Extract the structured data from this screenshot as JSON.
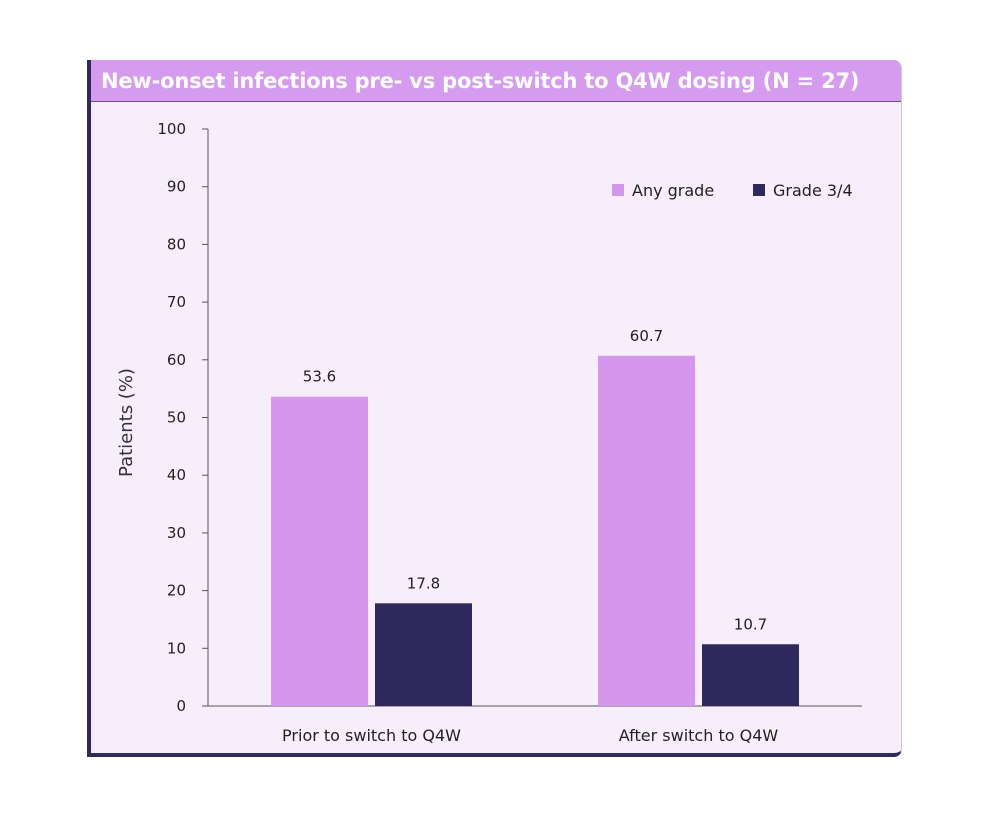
{
  "chart_data": {
    "type": "bar",
    "title": "New-onset infections pre- vs post-switch to Q4W dosing (N = 27)",
    "xlabel": "",
    "ylabel": "Patients (%)",
    "ylim": [
      0,
      100
    ],
    "yticks": [
      0,
      10,
      20,
      30,
      40,
      50,
      60,
      70,
      80,
      90,
      100
    ],
    "categories": [
      "Prior to switch to Q4W",
      "After switch to Q4W"
    ],
    "series": [
      {
        "name": "Any grade",
        "values": [
          53.6,
          60.7
        ],
        "labels": [
          "53.6",
          "60.7"
        ],
        "color": "#d596ee"
      },
      {
        "name": "Grade 3/4",
        "values": [
          17.8,
          10.7
        ],
        "labels": [
          "17.8",
          "10.7"
        ],
        "color": "#30295e"
      }
    ],
    "legend_position": "top-right",
    "grid": false
  },
  "colors": {
    "header_bg": "#d59bee",
    "panel_bg": "#f7eefb",
    "accent_border": "#30295e"
  }
}
